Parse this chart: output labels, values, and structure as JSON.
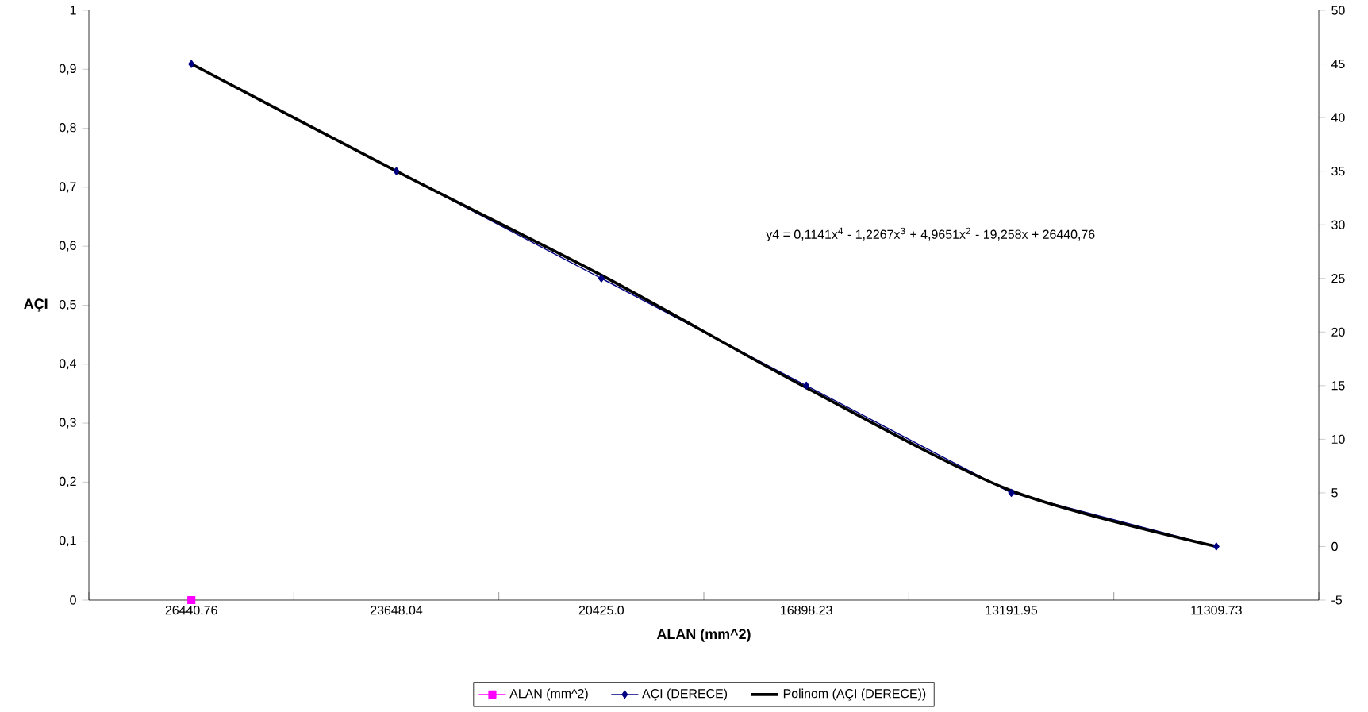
{
  "chart_data": {
    "type": "line",
    "categories": [
      "26440.76",
      "23648.04",
      "20425.0",
      "16898.23",
      "13191.95",
      "11309.73"
    ],
    "xlabel": "ALAN (mm^2)",
    "ylabel": "AÇI",
    "series": [
      {
        "name": "ALAN (mm^2)",
        "color": "#ff00ff",
        "marker": "square",
        "values": [
          0,
          null,
          null,
          null,
          null,
          null
        ]
      },
      {
        "name": "AÇI (DERECE)",
        "axis": "y2",
        "color": "#000080",
        "marker": "diamond",
        "values": [
          45,
          35,
          25,
          15,
          5,
          0
        ]
      },
      {
        "name": "Polinom (AÇI (DERECE))",
        "axis": "y2",
        "color": "#000000",
        "marker": "none",
        "values": [
          45,
          35,
          25.3,
          14.8,
          5.2,
          0
        ]
      }
    ],
    "ylim": [
      0,
      1
    ],
    "yticks": [
      0,
      {
        "value": 0.1,
        "label": "0,1"
      },
      {
        "value": 0.2,
        "label": "0,2"
      },
      {
        "value": 0.3,
        "label": "0,3"
      },
      {
        "value": 0.4,
        "label": "0,4"
      },
      {
        "value": 0.5,
        "label": "0,5"
      },
      {
        "value": 0.6,
        "label": "0,6"
      },
      {
        "value": 0.7,
        "label": "0,7"
      },
      {
        "value": 0.8,
        "label": "0,8"
      },
      {
        "value": 0.9,
        "label": "0,9"
      },
      1
    ],
    "y2lim": [
      -5,
      50
    ],
    "y2ticks": [
      -5,
      0,
      5,
      10,
      15,
      20,
      25,
      30,
      35,
      40,
      45,
      50
    ],
    "annotations": [
      "y4 = 0,1141x$^{4}$ - 1,2267x$^{3}$ + 4,9651x$^{2}$ - 19,258x + 26440,76"
    ],
    "legend": "bottom",
    "grid": false
  }
}
